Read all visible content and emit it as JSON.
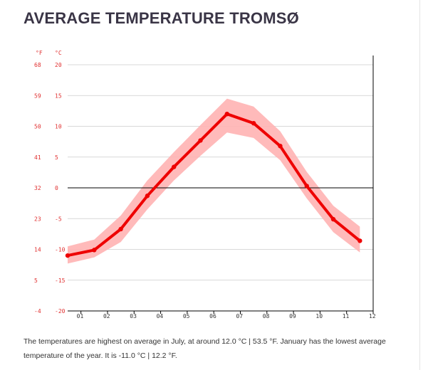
{
  "page": {
    "title": "AVERAGE TEMPERATURE TROMSØ",
    "caption": "The temperatures are highest on average in July, at around 12.0 °C | 53.5 °F. January has the lowest average temperature of the year. It is -11.0 °C | 12.2 °F."
  },
  "chart_data": {
    "type": "line",
    "title": "AVERAGE TEMPERATURE TROMSØ",
    "categories": [
      "01",
      "02",
      "03",
      "04",
      "05",
      "06",
      "07",
      "08",
      "09",
      "10",
      "11",
      "12"
    ],
    "series": [
      {
        "values": [
          -11.0,
          -10.1,
          -6.7,
          -1.3,
          3.4,
          7.7,
          12.0,
          10.5,
          6.8,
          0.3,
          -5.1,
          -8.6
        ]
      }
    ],
    "range_band": {
      "upper": [
        -9.5,
        -8.4,
        -4.5,
        1.2,
        5.8,
        10.2,
        14.5,
        13.2,
        9.2,
        2.6,
        -2.9,
        -6.3
      ],
      "lower": [
        -12.3,
        -11.3,
        -8.8,
        -3.5,
        1.2,
        5.2,
        9.0,
        8.1,
        4.5,
        -1.7,
        -7.2,
        -10.5
      ]
    },
    "y_axis_left_label": "°F",
    "y_axis_right_label": "°C",
    "y_ticks_c": [
      "20",
      "15",
      "10",
      "5",
      "0",
      "-5",
      "-10",
      "-15",
      "-20"
    ],
    "y_ticks_f": [
      "68",
      "59",
      "50",
      "41",
      "32",
      "23",
      "14",
      "5",
      "-4"
    ],
    "ylim": [
      -20,
      20
    ],
    "grid": true,
    "colors": {
      "line": "#ee0000",
      "band": "#ffb3b3",
      "zero_line": "#000000",
      "grid": "#cccccc",
      "tick_red": "#e03030",
      "title": "#3a3546"
    }
  }
}
